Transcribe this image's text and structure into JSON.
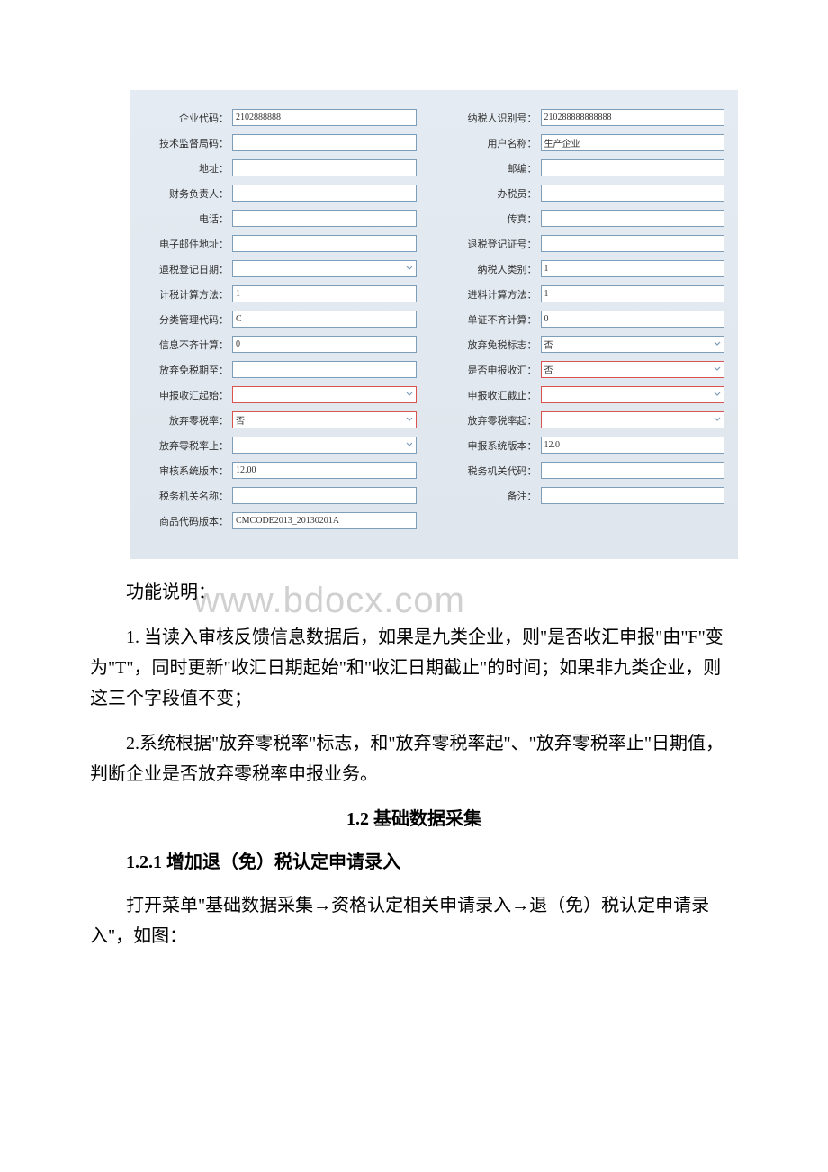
{
  "form": {
    "left_fields": [
      {
        "label": "企业代码：",
        "value": "2102888888",
        "type": "text"
      },
      {
        "label": "技术监督局码：",
        "value": "",
        "type": "text"
      },
      {
        "label": "地址：",
        "value": "",
        "type": "text"
      },
      {
        "label": "财务负责人：",
        "value": "",
        "type": "text"
      },
      {
        "label": "电话：",
        "value": "",
        "type": "text"
      },
      {
        "label": "电子邮件地址：",
        "value": "",
        "type": "text"
      },
      {
        "label": "退税登记日期：",
        "value": "",
        "type": "dropdown"
      },
      {
        "label": "计税计算方法：",
        "value": "1",
        "type": "text"
      },
      {
        "label": "分类管理代码：",
        "value": "C",
        "type": "text"
      },
      {
        "label": "信息不齐计算：",
        "value": "0",
        "type": "text"
      },
      {
        "label": "放弃免税期至：",
        "value": "",
        "type": "text"
      },
      {
        "label": "申报收汇起始：",
        "value": "",
        "type": "dropdown",
        "highlight": "red"
      },
      {
        "label": "放弃零税率：",
        "value": "否",
        "type": "dropdown",
        "highlight": "red"
      },
      {
        "label": "放弃零税率止：",
        "value": "",
        "type": "dropdown"
      },
      {
        "label": "审核系统版本：",
        "value": "12.00",
        "type": "text"
      },
      {
        "label": "税务机关名称：",
        "value": "",
        "type": "text"
      },
      {
        "label": "商品代码版本：",
        "value": "CMCODE2013_20130201A",
        "type": "text"
      }
    ],
    "right_fields": [
      {
        "label": "纳税人识别号：",
        "value": "210288888888888",
        "type": "text"
      },
      {
        "label": "用户名称：",
        "value": "生产企业",
        "type": "text"
      },
      {
        "label": "邮编：",
        "value": "",
        "type": "text"
      },
      {
        "label": "办税员：",
        "value": "",
        "type": "text"
      },
      {
        "label": "传真：",
        "value": "",
        "type": "text"
      },
      {
        "label": "退税登记证号：",
        "value": "",
        "type": "text"
      },
      {
        "label": "纳税人类别：",
        "value": "1",
        "type": "text"
      },
      {
        "label": "进料计算方法：",
        "value": "1",
        "type": "text"
      },
      {
        "label": "单证不齐计算：",
        "value": "0",
        "type": "text"
      },
      {
        "label": "放弃免税标志：",
        "value": "否",
        "type": "dropdown"
      },
      {
        "label": "是否申报收汇：",
        "value": "否",
        "type": "dropdown",
        "highlight": "red"
      },
      {
        "label": "申报收汇截止：",
        "value": "",
        "type": "dropdown",
        "highlight": "red"
      },
      {
        "label": "放弃零税率起：",
        "value": "",
        "type": "dropdown",
        "highlight": "red"
      },
      {
        "label": "申报系统版本：",
        "value": "12.0",
        "type": "text"
      },
      {
        "label": "税务机关代码：",
        "value": "",
        "type": "text"
      },
      {
        "label": "备注：",
        "value": "",
        "type": "text"
      }
    ]
  },
  "watermark": "www.bdocx.com",
  "content": {
    "function_label": "功能说明：",
    "para1": "1. 当读入审核反馈信息数据后，如果是九类企业，则\"是否收汇申报\"由\"F\"变为\"T\"，同时更新\"收汇日期起始\"和\"收汇日期截止\"的时间；如果非九类企业，则这三个字段值不变；",
    "para2": "2.系统根据\"放弃零税率\"标志，和\"放弃零税率起\"、\"放弃零税率止\"日期值，判断企业是否放弃零税率申报业务。",
    "section_title": "1.2 基础数据采集",
    "subsection_title": "1.2.1 增加退（免）税认定申请录入",
    "para3": "打开菜单\"基础数据采集→资格认定相关申请录入→退（免）税认定申请录入\"，如图："
  },
  "colors": {
    "form_bg_top": "#e4ebf2",
    "form_bg_bottom": "#dfe6ed",
    "input_border": "#7e9db9",
    "highlight_red": "#d9534f",
    "watermark_color": "#d0d0d0"
  }
}
